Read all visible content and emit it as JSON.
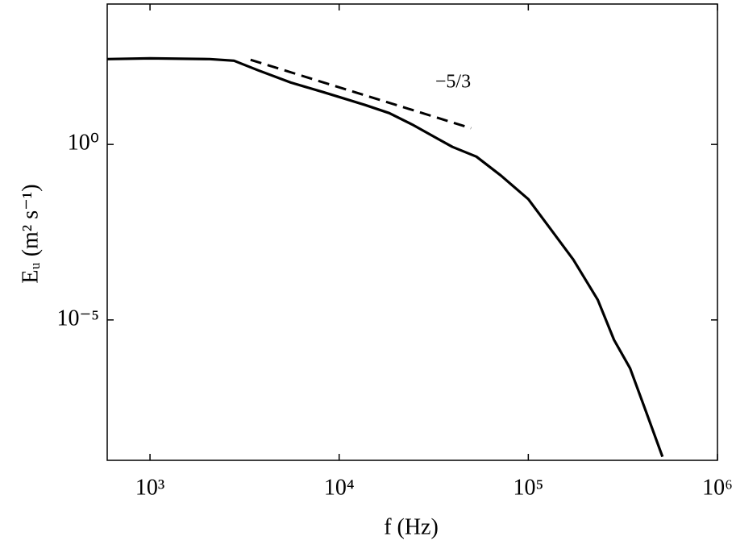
{
  "chart_data": {
    "type": "line",
    "x_label": "f (Hz)",
    "y_label": "Eᵤ (m² s⁻¹)",
    "annotation": "−5/3",
    "xscale": "log",
    "yscale": "log",
    "xlim": [
      594,
      1000000
    ],
    "ylim": [
      1e-09,
      10000
    ],
    "xticks": [
      {
        "value": 1000,
        "label": "10³"
      },
      {
        "value": 10000,
        "label": "10⁴"
      },
      {
        "value": 100000,
        "label": "10⁵"
      },
      {
        "value": 1000000,
        "label": "10⁶"
      }
    ],
    "yticks": [
      {
        "value": 1,
        "label": "10⁰"
      },
      {
        "value": 1e-05,
        "label": "10⁻⁵"
      }
    ],
    "series": [
      {
        "name": "Eᵤ",
        "color": "#000000",
        "dash": false,
        "x": [
          594,
          1000,
          2070,
          2780,
          3740,
          5550,
          8220,
          10000,
          13700,
          18400,
          24300,
          33200,
          39700,
          53200,
          71600,
          100000,
          129000,
          173000,
          233000,
          284000,
          345000,
          421000,
          512000
        ],
        "values": [
          270,
          283,
          270,
          243,
          129,
          58,
          31,
          22.5,
          13.3,
          7.8,
          3.7,
          1.45,
          0.85,
          0.45,
          0.13,
          0.0275,
          0.0044,
          0.00052,
          3.7e-05,
          2.7e-06,
          4.2e-07,
          2.3e-08,
          1.26e-09
        ]
      },
      {
        "name": "−5/3 slope",
        "color": "#000000",
        "dash": true,
        "x": [
          3400,
          49800
        ],
        "values": [
          257,
          2.9
        ]
      }
    ]
  }
}
